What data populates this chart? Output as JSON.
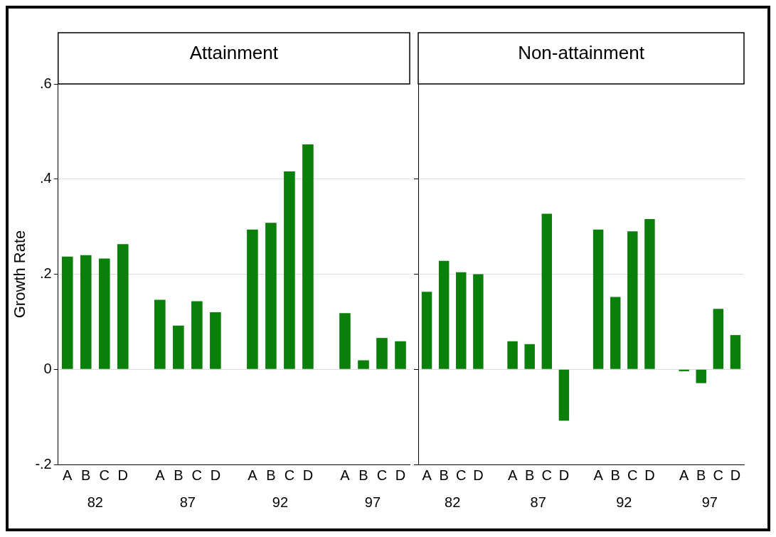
{
  "chart_data": [
    {
      "type": "bar",
      "title": "Attainment",
      "ylabel": "Growth Rate",
      "categories": [
        "A",
        "B",
        "C",
        "D",
        null,
        "A",
        "B",
        "C",
        "D",
        null,
        "A",
        "B",
        "C",
        "D",
        null,
        "A",
        "B",
        "C",
        "D"
      ],
      "values": [
        0.237,
        0.24,
        0.233,
        0.263,
        null,
        0.146,
        0.092,
        0.143,
        0.12,
        null,
        0.294,
        0.308,
        0.416,
        0.473,
        null,
        0.118,
        0.019,
        0.066,
        0.059
      ],
      "color": "#0a800a",
      "annotations": [
        "82",
        "87",
        "92",
        "97"
      ],
      "ylim": [
        -0.2,
        0.6
      ],
      "yticks": [
        {
          "value": -0.2,
          "label": "-.2"
        },
        {
          "value": 0,
          "label": "0"
        },
        {
          "value": 0.2,
          "label": ".2"
        },
        {
          "value": 0.4,
          "label": ".4"
        },
        {
          "value": 0.6,
          "label": ".6"
        }
      ],
      "grid": "y",
      "legend": false
    },
    {
      "type": "bar",
      "title": "Non-attainment",
      "categories": [
        "A",
        "B",
        "C",
        "D",
        null,
        "A",
        "B",
        "C",
        "D",
        null,
        "A",
        "B",
        "C",
        "D",
        null,
        "A",
        "B",
        "C",
        "D"
      ],
      "values": [
        0.163,
        0.228,
        0.204,
        0.2,
        null,
        0.059,
        0.053,
        0.327,
        -0.108,
        null,
        0.294,
        0.152,
        0.29,
        0.316,
        null,
        -0.004,
        -0.029,
        0.127,
        0.072
      ],
      "color": "#0a800a",
      "annotations": [
        "82",
        "87",
        "92",
        "97"
      ],
      "ylim": [
        -0.2,
        0.6
      ],
      "yticks": [
        {
          "value": -0.2,
          "label": null
        },
        {
          "value": 0,
          "label": null
        },
        {
          "value": 0.2,
          "label": null
        },
        {
          "value": 0.4,
          "label": null
        }
      ],
      "grid": "y",
      "legend": false,
      "tick_labels": "x"
    }
  ]
}
